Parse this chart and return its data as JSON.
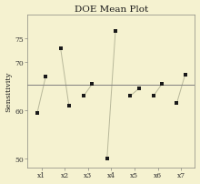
{
  "title": "DOE Mean Plot",
  "ylabel": "Sensitivity",
  "background_color": "#f5f2d0",
  "ylim": [
    48,
    80
  ],
  "factors": [
    "x1",
    "x2",
    "x3",
    "x4",
    "x5",
    "x6",
    "x7"
  ],
  "points": [
    [
      59.5,
      67.0
    ],
    [
      73.0,
      61.0
    ],
    [
      63.0,
      65.5
    ],
    [
      50.0,
      76.5
    ],
    [
      63.0,
      64.5
    ],
    [
      63.0,
      65.5
    ],
    [
      61.5,
      67.5
    ]
  ],
  "grand_mean": 65.3,
  "point_color": "#1a1a1a",
  "line_color": "#b8b89a",
  "mean_line_color": "#808080",
  "title_fontsize": 7.5,
  "axis_fontsize": 6,
  "tick_fontsize": 5.5,
  "ytick_vals": [
    50,
    60,
    70,
    75
  ],
  "ytick_labels": [
    "50",
    "60",
    "70",
    "75"
  ]
}
